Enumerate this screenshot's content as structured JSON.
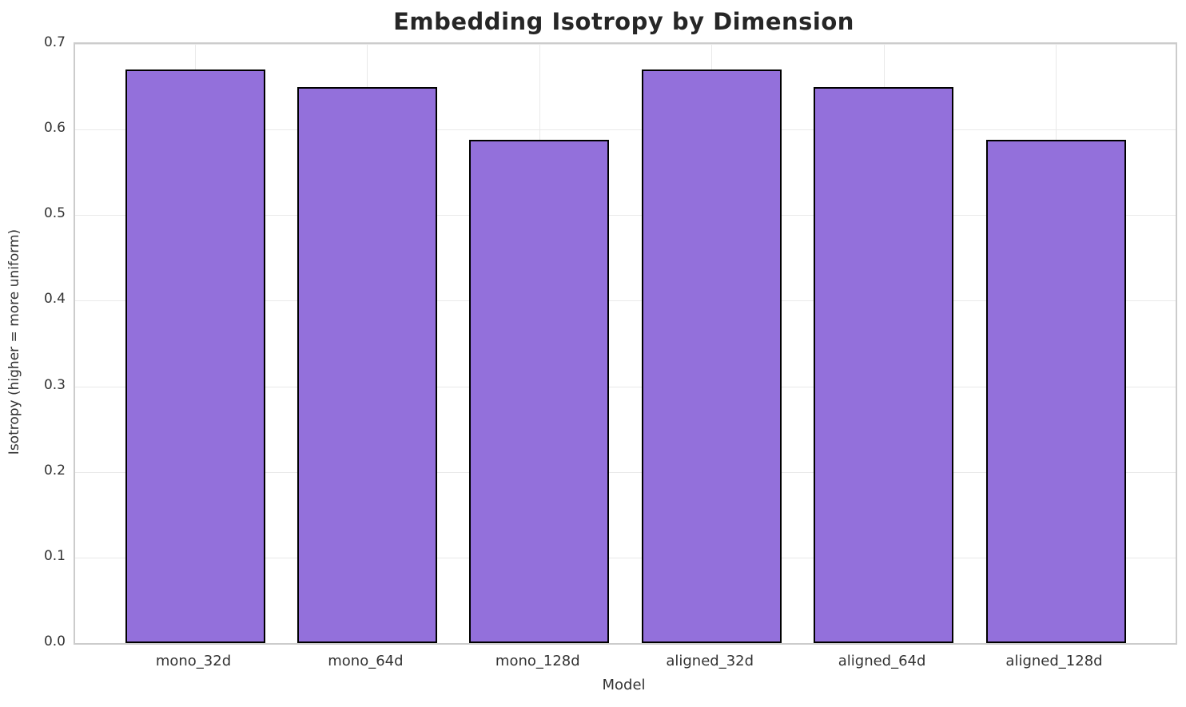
{
  "chart_data": {
    "type": "bar",
    "title": "Embedding Isotropy by Dimension",
    "xlabel": "Model",
    "ylabel": "Isotropy (higher = more uniform)",
    "categories": [
      "mono_32d",
      "mono_64d",
      "mono_128d",
      "aligned_32d",
      "aligned_64d",
      "aligned_128d"
    ],
    "values": [
      0.67,
      0.65,
      0.588,
      0.67,
      0.65,
      0.588
    ],
    "ylim": [
      0.0,
      0.7
    ],
    "yticks": [
      0.0,
      0.1,
      0.2,
      0.3,
      0.4,
      0.5,
      0.6,
      0.7
    ],
    "ytick_labels": [
      "0.0",
      "0.1",
      "0.2",
      "0.3",
      "0.4",
      "0.5",
      "0.6",
      "0.7"
    ],
    "grid": "on",
    "legend": "none",
    "colors": {
      "bar_fill": "#9370DB",
      "bar_edge": "#000000",
      "grid_line": "#e9e9e9",
      "spine": "#cccccc",
      "title_text": "#262626",
      "tick_text": "#333333",
      "background": "#ffffff"
    }
  }
}
